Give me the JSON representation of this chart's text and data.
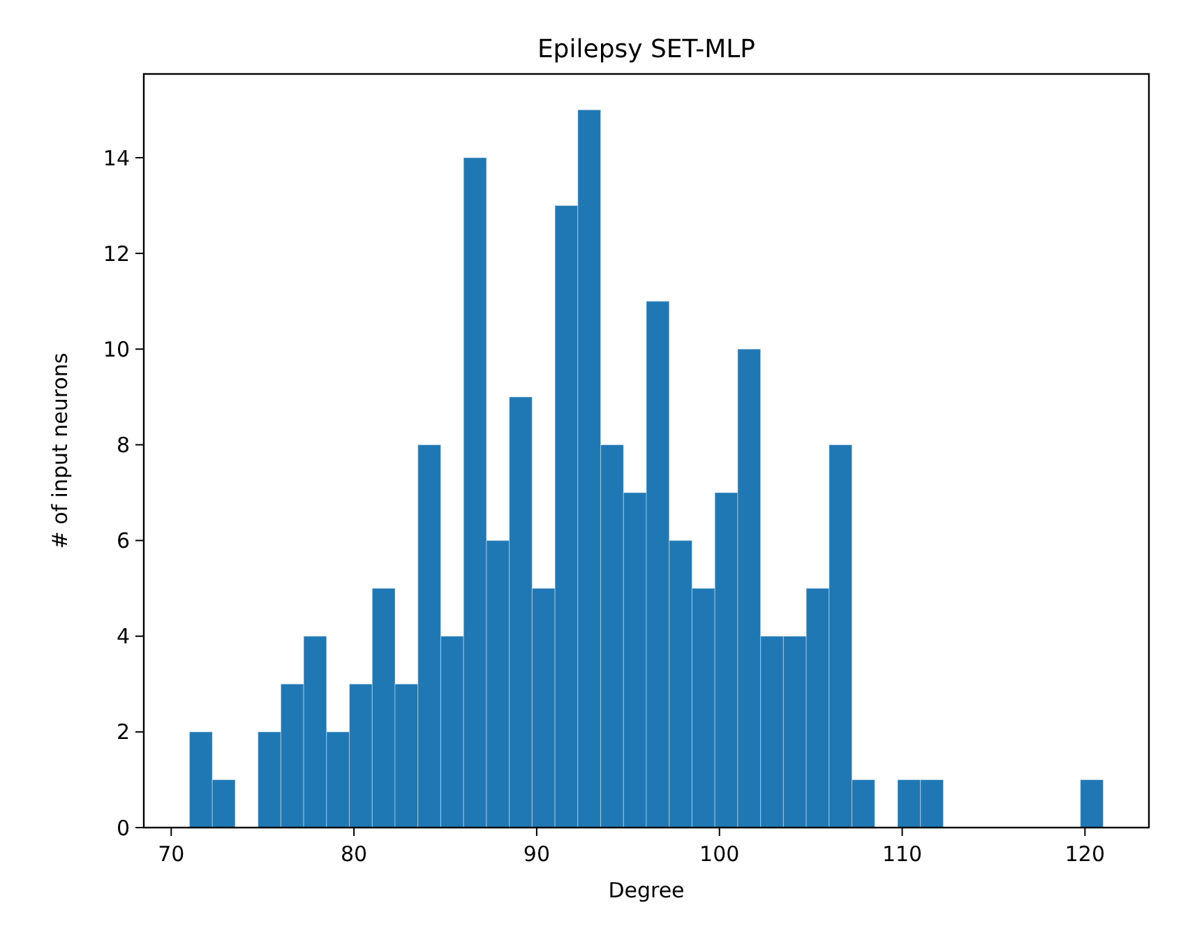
{
  "chart_data": {
    "type": "histogram",
    "title": "Epilepsy SET-MLP",
    "xlabel": "Degree",
    "ylabel": "# of input neurons",
    "bins": [
      71,
      72.25,
      73.5,
      74.75,
      76,
      77.25,
      78.5,
      79.75,
      81,
      82.25,
      83.5,
      84.75,
      86,
      87.25,
      88.5,
      89.75,
      91,
      92.25,
      93.5,
      94.75,
      96,
      97.25,
      98.5,
      99.75,
      101,
      102.25,
      103.5,
      104.75,
      106,
      107.25,
      108.5,
      109.75,
      111,
      112.25,
      113.5,
      114.75,
      116,
      117.25,
      118.5,
      119.75,
      121
    ],
    "values": [
      2,
      1,
      0,
      2,
      3,
      4,
      2,
      3,
      5,
      3,
      8,
      4,
      14,
      6,
      9,
      5,
      13,
      15,
      8,
      7,
      11,
      6,
      5,
      7,
      10,
      4,
      4,
      5,
      8,
      1,
      0,
      1,
      1,
      0,
      0,
      0,
      0,
      0,
      0,
      1
    ],
    "color": "#1f77b4",
    "xlim": [
      68.5,
      123.5
    ],
    "xticks": [
      70,
      80,
      90,
      100,
      110,
      120
    ],
    "ylim": [
      0,
      15.75
    ],
    "yticks": [
      0,
      2,
      4,
      6,
      8,
      10,
      12,
      14
    ],
    "grid": false
  }
}
